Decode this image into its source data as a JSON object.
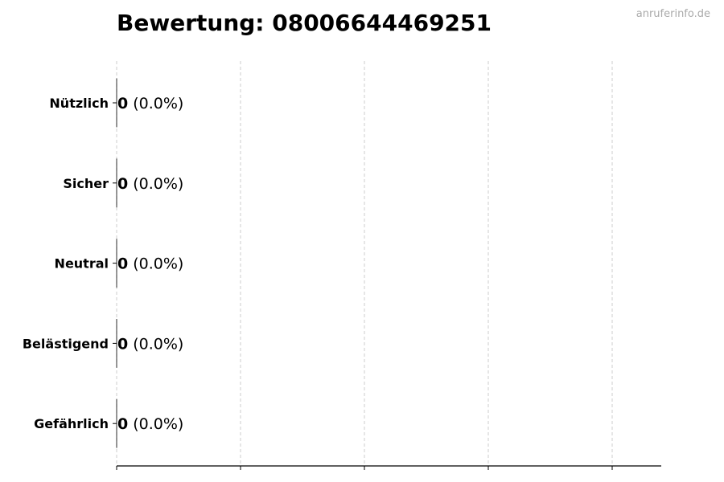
{
  "watermark": "anruferinfo.de",
  "chart_data": {
    "type": "bar",
    "orientation": "horizontal",
    "title": "Bewertung: 08006644469251",
    "categories": [
      "Nützlich",
      "Sicher",
      "Neutral",
      "Belästigend",
      "Gefährlich"
    ],
    "values": [
      0,
      0,
      0,
      0,
      0
    ],
    "data_labels": [
      {
        "count": "0",
        "percent": "(0.0%)"
      },
      {
        "count": "0",
        "percent": "(0.0%)"
      },
      {
        "count": "0",
        "percent": "(0.0%)"
      },
      {
        "count": "0",
        "percent": "(0.0%)"
      },
      {
        "count": "0",
        "percent": "(0.0%)"
      }
    ],
    "xlabel": "",
    "ylabel": "",
    "xtick_labels_shown": false,
    "grid": "x, dashed",
    "colors": {
      "bar_edge": "#000000",
      "grid": "#cccccc",
      "axis": "#000000",
      "watermark": "#aaaaaa"
    }
  }
}
